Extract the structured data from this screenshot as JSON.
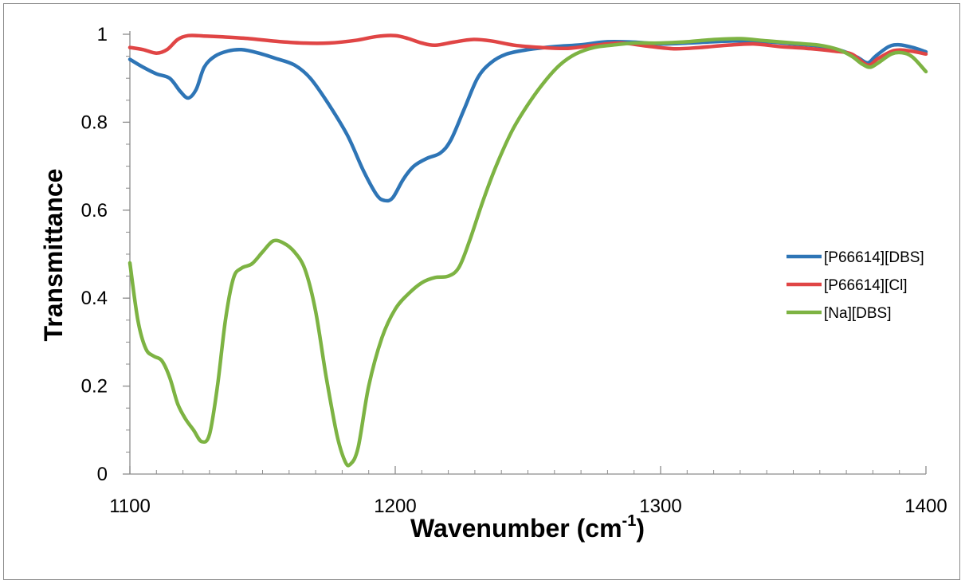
{
  "chart_data": {
    "type": "line",
    "xlabel": "Wavenumber (cm",
    "xlabel_sup": "-1",
    "xlabel_suffix": ")",
    "ylabel": "Transmittance",
    "xlim": [
      1100,
      1400
    ],
    "ylim": [
      0,
      1
    ],
    "x_ticks": [
      1100,
      1200,
      1300,
      1400
    ],
    "x_tick_labels": [
      "1100",
      "1200",
      "1300",
      "1400"
    ],
    "x_minor_step": 10,
    "y_ticks": [
      0,
      0.2,
      0.4,
      0.6,
      0.8,
      1
    ],
    "y_tick_labels": [
      "0",
      "0.2",
      "0.4",
      "0.6",
      "0.8",
      "1"
    ],
    "y_minor_step": 0.05,
    "grid": false,
    "legend_position": "right",
    "series": [
      {
        "name": "[P66614][DBS]",
        "color": "#2e75b6",
        "points": [
          [
            1100,
            0.943
          ],
          [
            1105,
            0.925
          ],
          [
            1110,
            0.91
          ],
          [
            1115,
            0.9
          ],
          [
            1119,
            0.87
          ],
          [
            1122,
            0.855
          ],
          [
            1125,
            0.875
          ],
          [
            1128,
            0.925
          ],
          [
            1132,
            0.95
          ],
          [
            1137,
            0.962
          ],
          [
            1142,
            0.965
          ],
          [
            1148,
            0.958
          ],
          [
            1155,
            0.945
          ],
          [
            1162,
            0.93
          ],
          [
            1168,
            0.9
          ],
          [
            1175,
            0.84
          ],
          [
            1182,
            0.77
          ],
          [
            1188,
            0.69
          ],
          [
            1193,
            0.635
          ],
          [
            1196,
            0.622
          ],
          [
            1199,
            0.628
          ],
          [
            1203,
            0.67
          ],
          [
            1207,
            0.7
          ],
          [
            1212,
            0.718
          ],
          [
            1217,
            0.73
          ],
          [
            1221,
            0.76
          ],
          [
            1226,
            0.83
          ],
          [
            1231,
            0.9
          ],
          [
            1236,
            0.935
          ],
          [
            1242,
            0.955
          ],
          [
            1250,
            0.965
          ],
          [
            1260,
            0.972
          ],
          [
            1270,
            0.976
          ],
          [
            1280,
            0.983
          ],
          [
            1290,
            0.982
          ],
          [
            1300,
            0.978
          ],
          [
            1310,
            0.98
          ],
          [
            1320,
            0.983
          ],
          [
            1330,
            0.985
          ],
          [
            1340,
            0.983
          ],
          [
            1350,
            0.978
          ],
          [
            1360,
            0.973
          ],
          [
            1368,
            0.963
          ],
          [
            1374,
            0.948
          ],
          [
            1378,
            0.935
          ],
          [
            1381,
            0.95
          ],
          [
            1386,
            0.972
          ],
          [
            1390,
            0.976
          ],
          [
            1395,
            0.97
          ],
          [
            1400,
            0.96
          ]
        ]
      },
      {
        "name": "[P66614][Cl]",
        "color": "#e04545",
        "points": [
          [
            1100,
            0.97
          ],
          [
            1105,
            0.965
          ],
          [
            1110,
            0.957
          ],
          [
            1114,
            0.965
          ],
          [
            1118,
            0.988
          ],
          [
            1122,
            0.997
          ],
          [
            1128,
            0.996
          ],
          [
            1135,
            0.994
          ],
          [
            1145,
            0.99
          ],
          [
            1155,
            0.984
          ],
          [
            1165,
            0.98
          ],
          [
            1175,
            0.98
          ],
          [
            1185,
            0.986
          ],
          [
            1193,
            0.995
          ],
          [
            1200,
            0.997
          ],
          [
            1205,
            0.99
          ],
          [
            1210,
            0.98
          ],
          [
            1215,
            0.975
          ],
          [
            1222,
            0.982
          ],
          [
            1229,
            0.988
          ],
          [
            1236,
            0.985
          ],
          [
            1245,
            0.975
          ],
          [
            1255,
            0.97
          ],
          [
            1265,
            0.968
          ],
          [
            1275,
            0.975
          ],
          [
            1285,
            0.98
          ],
          [
            1295,
            0.973
          ],
          [
            1305,
            0.967
          ],
          [
            1315,
            0.97
          ],
          [
            1325,
            0.975
          ],
          [
            1335,
            0.978
          ],
          [
            1345,
            0.972
          ],
          [
            1355,
            0.968
          ],
          [
            1365,
            0.962
          ],
          [
            1372,
            0.955
          ],
          [
            1378,
            0.93
          ],
          [
            1382,
            0.945
          ],
          [
            1388,
            0.963
          ],
          [
            1394,
            0.962
          ],
          [
            1400,
            0.955
          ]
        ]
      },
      {
        "name": "[Na][DBS]",
        "color": "#7db343",
        "points": [
          [
            1100,
            0.48
          ],
          [
            1103,
            0.35
          ],
          [
            1106,
            0.285
          ],
          [
            1109,
            0.268
          ],
          [
            1112,
            0.258
          ],
          [
            1115,
            0.22
          ],
          [
            1118,
            0.16
          ],
          [
            1121,
            0.125
          ],
          [
            1124,
            0.1
          ],
          [
            1127,
            0.074
          ],
          [
            1130,
            0.09
          ],
          [
            1133,
            0.2
          ],
          [
            1136,
            0.35
          ],
          [
            1139,
            0.445
          ],
          [
            1142,
            0.468
          ],
          [
            1146,
            0.478
          ],
          [
            1150,
            0.505
          ],
          [
            1154,
            0.53
          ],
          [
            1158,
            0.525
          ],
          [
            1162,
            0.505
          ],
          [
            1166,
            0.465
          ],
          [
            1170,
            0.37
          ],
          [
            1174,
            0.22
          ],
          [
            1178,
            0.09
          ],
          [
            1181,
            0.03
          ],
          [
            1183,
            0.022
          ],
          [
            1186,
            0.06
          ],
          [
            1190,
            0.2
          ],
          [
            1195,
            0.31
          ],
          [
            1200,
            0.375
          ],
          [
            1205,
            0.41
          ],
          [
            1210,
            0.435
          ],
          [
            1215,
            0.447
          ],
          [
            1220,
            0.45
          ],
          [
            1224,
            0.47
          ],
          [
            1228,
            0.53
          ],
          [
            1233,
            0.62
          ],
          [
            1238,
            0.7
          ],
          [
            1244,
            0.78
          ],
          [
            1250,
            0.84
          ],
          [
            1256,
            0.89
          ],
          [
            1262,
            0.93
          ],
          [
            1268,
            0.955
          ],
          [
            1275,
            0.97
          ],
          [
            1283,
            0.976
          ],
          [
            1290,
            0.98
          ],
          [
            1300,
            0.98
          ],
          [
            1310,
            0.983
          ],
          [
            1320,
            0.988
          ],
          [
            1330,
            0.99
          ],
          [
            1340,
            0.985
          ],
          [
            1350,
            0.98
          ],
          [
            1360,
            0.975
          ],
          [
            1367,
            0.965
          ],
          [
            1372,
            0.95
          ],
          [
            1376,
            0.932
          ],
          [
            1379,
            0.925
          ],
          [
            1382,
            0.935
          ],
          [
            1387,
            0.955
          ],
          [
            1391,
            0.958
          ],
          [
            1395,
            0.948
          ],
          [
            1400,
            0.915
          ]
        ]
      }
    ]
  }
}
